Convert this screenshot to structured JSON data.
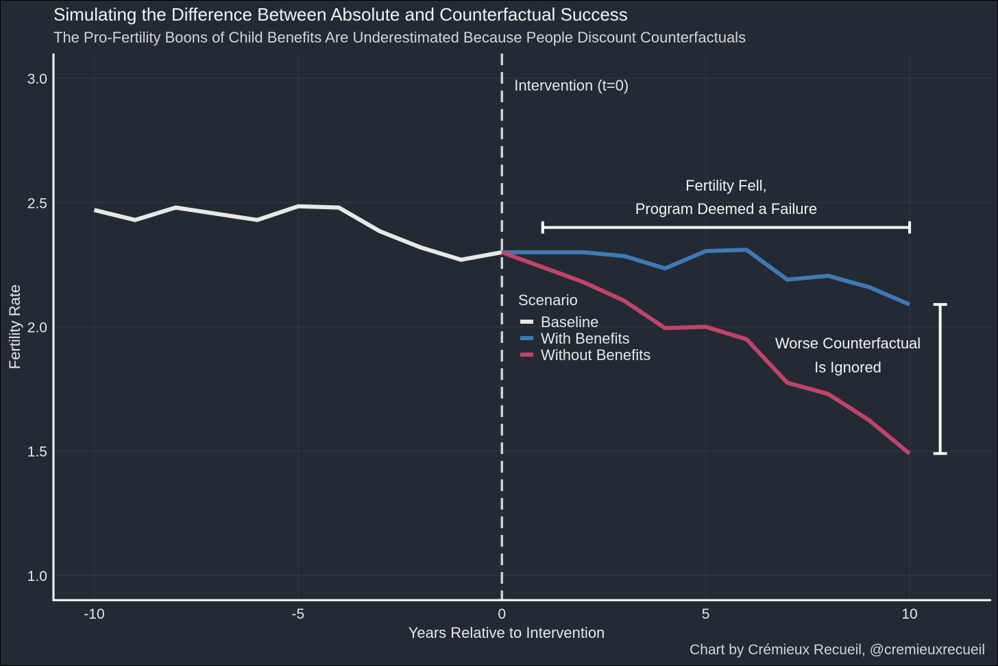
{
  "title": "Simulating the Difference Between Absolute and Counterfactual Success",
  "subtitle": "The Pro-Fertility Boons of Child Benefits Are Underestimated Because People Discount Counterfactuals",
  "caption": "Chart by Crémieux Recueil, @cremieuxrecueil",
  "colors": {
    "background": "#232a33",
    "grid": "#323a44",
    "axis": "#ffffff",
    "text": "#e6e6e6"
  },
  "chart_data": {
    "type": "line",
    "xlabel": "Years Relative to Intervention",
    "ylabel": "Fertility Rate",
    "xlim": [
      -11,
      12
    ],
    "ylim": [
      0.9,
      3.1
    ],
    "x_ticks": [
      -10,
      -5,
      0,
      5,
      10
    ],
    "x_tick_labels": [
      "-10",
      "-5",
      "0",
      "5",
      "10"
    ],
    "y_ticks": [
      1.0,
      1.5,
      2.0,
      2.5,
      3.0
    ],
    "y_tick_labels": [
      "1.0",
      "1.5",
      "2.0",
      "2.5",
      "3.0"
    ],
    "grid": true,
    "legend": {
      "title": "Scenario",
      "placement": "center, right of intervention line",
      "entries": [
        "Baseline",
        "With Benefits",
        "Without Benefits"
      ]
    },
    "series": [
      {
        "name": "Baseline",
        "color": "#e8e8e8",
        "x": [
          -10,
          -9,
          -8,
          -7,
          -6,
          -5,
          -4,
          -3,
          -2,
          -1,
          0
        ],
        "y": [
          2.47,
          2.43,
          2.48,
          2.455,
          2.43,
          2.485,
          2.48,
          2.385,
          2.32,
          2.27,
          2.3
        ]
      },
      {
        "name": "With Benefits",
        "color": "#3e79b4",
        "x": [
          0,
          1,
          2,
          3,
          4,
          5,
          6,
          7,
          8,
          9,
          10
        ],
        "y": [
          2.3,
          2.3,
          2.3,
          2.285,
          2.235,
          2.305,
          2.31,
          2.19,
          2.205,
          2.16,
          2.09
        ]
      },
      {
        "name": "Without Benefits",
        "color": "#c0446a",
        "x": [
          0,
          1,
          2,
          3,
          4,
          5,
          6,
          7,
          8,
          9,
          10
        ],
        "y": [
          2.3,
          2.24,
          2.18,
          2.105,
          1.995,
          2.0,
          1.95,
          1.775,
          1.73,
          1.625,
          1.49
        ]
      }
    ],
    "vline": {
      "x": 0,
      "style": "dashed",
      "label": "Intervention (t=0)"
    },
    "annotations": [
      {
        "id": "fell",
        "lines": [
          "Fertility Fell,",
          "Program Deemed a Failure"
        ],
        "bracket": "horizontal",
        "x_range": [
          1,
          10
        ],
        "y": 2.4
      },
      {
        "id": "ignored",
        "lines": [
          "Worse Counterfactual",
          "Is Ignored"
        ],
        "bracket": "vertical",
        "x": 10.75,
        "y_range": [
          1.49,
          2.09
        ]
      }
    ]
  }
}
